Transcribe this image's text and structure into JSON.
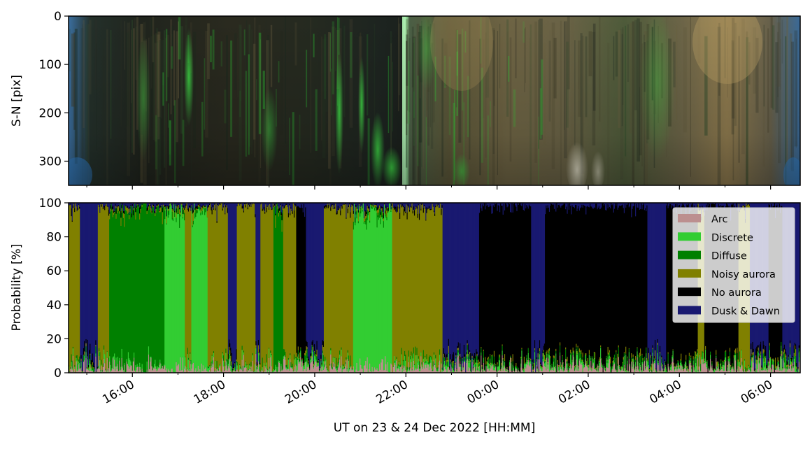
{
  "chart_data": [
    {
      "type": "heatmap",
      "panel": "keogram",
      "ylabel": "S-N [pix]",
      "ylim": [
        350,
        0
      ],
      "yticks": [
        0,
        100,
        200,
        300
      ],
      "xlim_hours": [
        14.6,
        30.65
      ],
      "xticks_hours": [
        16,
        18,
        20,
        22,
        24,
        26,
        28,
        30
      ],
      "colors": {
        "night": "#1b1c19",
        "green": "#2bdc32",
        "bright_green": "#b8ffbc",
        "tan": "#b79d5f",
        "blue_edge": "#3b6f9d",
        "grey_white": "#c9c4a8"
      }
    },
    {
      "type": "area",
      "panel": "classification",
      "ylabel": "Probability [%]",
      "xlabel": "UT on 23 & 24 Dec 2022 [HH:MM]",
      "ylim": [
        0,
        100
      ],
      "yticks": [
        0,
        20,
        40,
        60,
        80,
        100
      ],
      "xlim_hours": [
        14.6,
        30.65
      ],
      "xticks_hours": [
        16,
        18,
        20,
        22,
        24,
        26,
        28,
        30
      ],
      "xtick_labels": [
        "16:00",
        "18:00",
        "20:00",
        "22:00",
        "00:00",
        "02:00",
        "04:00",
        "06:00"
      ],
      "legend_placement": "top-right",
      "series": [
        {
          "name": "Arc",
          "color": "#bc8f8f"
        },
        {
          "name": "Discrete",
          "color": "#32cd32"
        },
        {
          "name": "Diffuse",
          "color": "#008000"
        },
        {
          "name": "Noisy aurora",
          "color": "#808000"
        },
        {
          "name": "No aurora",
          "color": "#000000"
        },
        {
          "name": "Dusk & Dawn",
          "color": "#191970"
        }
      ],
      "dominant_class_segments": [
        {
          "start": 14.6,
          "end": 14.85,
          "class": "Noisy aurora"
        },
        {
          "start": 14.85,
          "end": 15.25,
          "class": "Dusk & Dawn"
        },
        {
          "start": 15.25,
          "end": 15.5,
          "class": "Noisy aurora"
        },
        {
          "start": 15.5,
          "end": 16.7,
          "class": "Diffuse"
        },
        {
          "start": 16.7,
          "end": 17.15,
          "class": "Discrete"
        },
        {
          "start": 17.15,
          "end": 17.3,
          "class": "Noisy aurora"
        },
        {
          "start": 17.3,
          "end": 17.65,
          "class": "Discrete"
        },
        {
          "start": 17.65,
          "end": 18.1,
          "class": "Noisy aurora"
        },
        {
          "start": 18.1,
          "end": 18.3,
          "class": "Dusk & Dawn"
        },
        {
          "start": 18.3,
          "end": 18.7,
          "class": "Noisy aurora"
        },
        {
          "start": 18.7,
          "end": 18.8,
          "class": "Dusk & Dawn"
        },
        {
          "start": 18.8,
          "end": 19.1,
          "class": "Noisy aurora"
        },
        {
          "start": 19.1,
          "end": 19.3,
          "class": "Diffuse"
        },
        {
          "start": 19.3,
          "end": 19.6,
          "class": "Noisy aurora"
        },
        {
          "start": 19.6,
          "end": 19.8,
          "class": "No aurora"
        },
        {
          "start": 19.8,
          "end": 20.2,
          "class": "Dusk & Dawn"
        },
        {
          "start": 20.2,
          "end": 20.85,
          "class": "Noisy aurora"
        },
        {
          "start": 20.85,
          "end": 21.7,
          "class": "Discrete"
        },
        {
          "start": 21.7,
          "end": 22.8,
          "class": "Noisy aurora"
        },
        {
          "start": 22.8,
          "end": 23.6,
          "class": "Dusk & Dawn"
        },
        {
          "start": 23.6,
          "end": 24.75,
          "class": "No aurora"
        },
        {
          "start": 24.75,
          "end": 25.05,
          "class": "Dusk & Dawn"
        },
        {
          "start": 25.05,
          "end": 27.3,
          "class": "No aurora"
        },
        {
          "start": 27.3,
          "end": 27.7,
          "class": "Dusk & Dawn"
        },
        {
          "start": 27.7,
          "end": 28.4,
          "class": "No aurora"
        },
        {
          "start": 28.4,
          "end": 28.55,
          "class": "Noisy aurora"
        },
        {
          "start": 28.55,
          "end": 29.3,
          "class": "No aurora"
        },
        {
          "start": 29.3,
          "end": 29.55,
          "class": "Noisy aurora"
        },
        {
          "start": 29.55,
          "end": 29.95,
          "class": "Dusk & Dawn"
        },
        {
          "start": 29.95,
          "end": 30.25,
          "class": "No aurora"
        },
        {
          "start": 30.25,
          "end": 30.65,
          "class": "Dusk & Dawn"
        }
      ]
    }
  ]
}
